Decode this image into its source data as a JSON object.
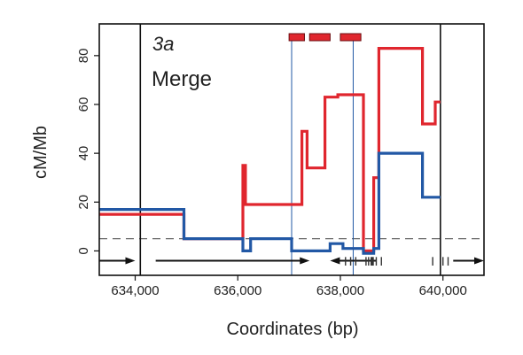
{
  "chart_data": {
    "type": "line",
    "panel_label": "3a",
    "panel_title": "Merge",
    "xlabel": "Coordinates (bp)",
    "ylabel": "cM/Mb",
    "xlim": [
      633300,
      640800
    ],
    "ylim": [
      -10,
      93
    ],
    "x_ticks": [
      634000,
      636000,
      638000,
      640000
    ],
    "x_tick_labels": [
      "634,000",
      "636,000",
      "638,000",
      "640,000"
    ],
    "y_ticks": [
      0,
      20,
      40,
      60,
      80
    ],
    "y_tick_labels": [
      "0",
      "20",
      "40",
      "60",
      "80"
    ],
    "reference_line": {
      "y": 5,
      "style": "dashed",
      "color": "#666666"
    },
    "boundary_lines": [
      634100,
      639950
    ],
    "blue_vertical_lines": [
      637050,
      638250
    ],
    "colors": {
      "red": "#e0262e",
      "blue": "#2258a5",
      "gray": "#444444"
    },
    "series": [
      {
        "color": "#e0262e",
        "steps": [
          [
            633300,
            15
          ],
          [
            634100,
            15
          ],
          [
            634950,
            15
          ],
          [
            634950,
            5
          ],
          [
            636100,
            5
          ],
          [
            636100,
            35
          ],
          [
            636150,
            35
          ],
          [
            636150,
            19
          ],
          [
            637250,
            19
          ],
          [
            637250,
            49
          ],
          [
            637350,
            49
          ],
          [
            637350,
            34
          ],
          [
            637700,
            34
          ],
          [
            637700,
            63
          ],
          [
            637950,
            63
          ],
          [
            637950,
            64
          ],
          [
            638450,
            64
          ],
          [
            638450,
            0
          ],
          [
            638650,
            0
          ],
          [
            638650,
            30
          ],
          [
            638750,
            30
          ],
          [
            638750,
            83
          ],
          [
            639600,
            83
          ],
          [
            639600,
            52
          ],
          [
            639850,
            52
          ],
          [
            639850,
            61
          ],
          [
            639950,
            61
          ]
        ]
      },
      {
        "color": "#2258a5",
        "steps": [
          [
            633300,
            17
          ],
          [
            634100,
            17
          ],
          [
            634950,
            17
          ],
          [
            634950,
            5
          ],
          [
            636100,
            5
          ],
          [
            636100,
            0
          ],
          [
            636250,
            0
          ],
          [
            636250,
            5
          ],
          [
            637050,
            5
          ],
          [
            637050,
            0
          ],
          [
            637800,
            0
          ],
          [
            637800,
            3
          ],
          [
            638050,
            3
          ],
          [
            638050,
            1
          ],
          [
            638450,
            1
          ],
          [
            638450,
            -1
          ],
          [
            638650,
            -1
          ],
          [
            638650,
            1
          ],
          [
            638750,
            1
          ],
          [
            638750,
            40
          ],
          [
            639600,
            40
          ],
          [
            639600,
            22
          ],
          [
            639950,
            22
          ]
        ]
      }
    ],
    "red_bars": [
      [
        637000,
        637300
      ],
      [
        637400,
        637800
      ],
      [
        638000,
        638400
      ]
    ],
    "arrows": [
      {
        "from": 633300,
        "to": 634000,
        "y": -4
      },
      {
        "from": 634400,
        "to": 637400,
        "y": -4
      },
      {
        "from": 638700,
        "to": 637800,
        "y": -4
      },
      {
        "from": 640200,
        "to": 640800,
        "y": -4
      }
    ],
    "rug_ticks": [
      638100,
      638200,
      638300,
      638500,
      638550,
      638600,
      638620,
      638640,
      638700,
      638800,
      639800,
      640000,
      640100
    ]
  }
}
